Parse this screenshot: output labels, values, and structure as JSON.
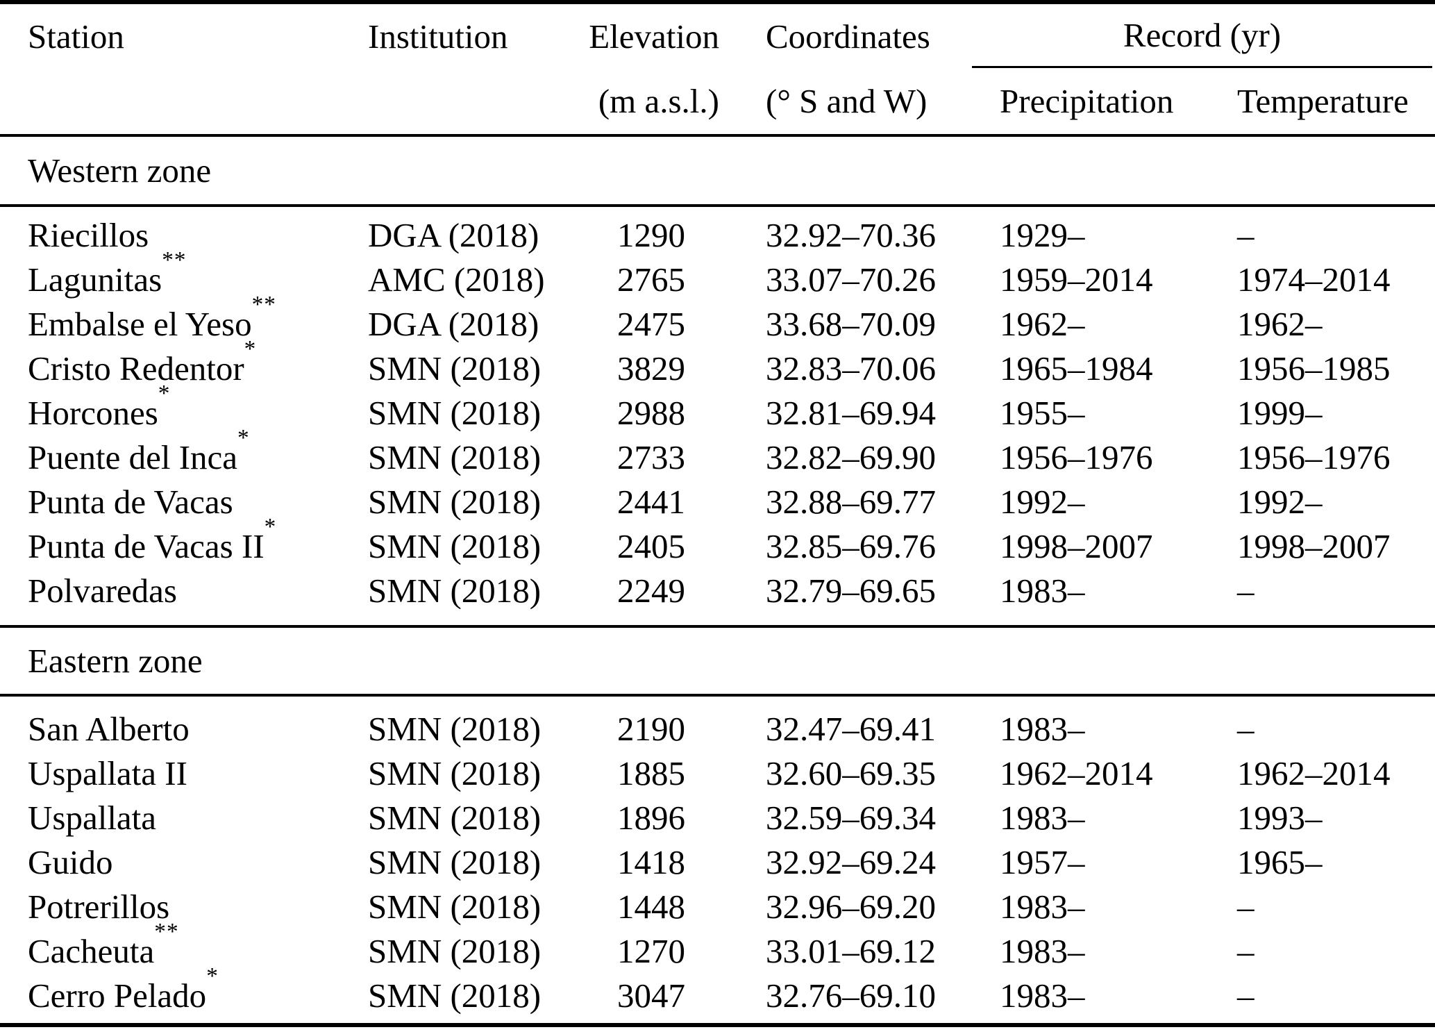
{
  "table": {
    "columns": {
      "station_label": "Station",
      "institution_label": "Institution",
      "elevation_label": "Elevation",
      "elevation_unit": "(m a.s.l.)",
      "coordinates_label": "Coordinates",
      "coordinates_unit": "(° S and W)",
      "record_label": "Record (yr)",
      "precipitation_label": "Precipitation",
      "temperature_label": "Temperature"
    },
    "sections": [
      {
        "title": "Western zone",
        "rows": [
          {
            "station": "Riecillos",
            "marker": "",
            "institution": "DGA (2018)",
            "elevation": "1290",
            "coordinates": "32.92–70.36",
            "precipitation": "1929–",
            "temperature": "–"
          },
          {
            "station": "Lagunitas",
            "marker": "**",
            "institution": "AMC (2018)",
            "elevation": "2765",
            "coordinates": "33.07–70.26",
            "precipitation": "1959–2014",
            "temperature": "1974–2014"
          },
          {
            "station": "Embalse el Yeso",
            "marker": "**",
            "institution": "DGA (2018)",
            "elevation": "2475",
            "coordinates": "33.68–70.09",
            "precipitation": "1962–",
            "temperature": "1962–"
          },
          {
            "station": "Cristo Redentor",
            "marker": "*",
            "institution": "SMN (2018)",
            "elevation": "3829",
            "coordinates": "32.83–70.06",
            "precipitation": "1965–1984",
            "temperature": "1956–1985"
          },
          {
            "station": "Horcones",
            "marker": "*",
            "institution": "SMN (2018)",
            "elevation": "2988",
            "coordinates": "32.81–69.94",
            "precipitation": "1955–",
            "temperature": "1999–"
          },
          {
            "station": "Puente del Inca",
            "marker": "*",
            "institution": "SMN (2018)",
            "elevation": "2733",
            "coordinates": "32.82–69.90",
            "precipitation": "1956–1976",
            "temperature": "1956–1976"
          },
          {
            "station": "Punta de Vacas",
            "marker": "",
            "institution": "SMN (2018)",
            "elevation": "2441",
            "coordinates": "32.88–69.77",
            "precipitation": "1992–",
            "temperature": "1992–"
          },
          {
            "station": "Punta de Vacas II",
            "marker": "*",
            "institution": "SMN (2018)",
            "elevation": "2405",
            "coordinates": "32.85–69.76",
            "precipitation": "1998–2007",
            "temperature": "1998–2007"
          },
          {
            "station": "Polvaredas",
            "marker": "",
            "institution": "SMN (2018)",
            "elevation": "2249",
            "coordinates": "32.79–69.65",
            "precipitation": "1983–",
            "temperature": "–"
          }
        ]
      },
      {
        "title": "Eastern zone",
        "rows": [
          {
            "station": "San Alberto",
            "marker": "",
            "institution": "SMN (2018)",
            "elevation": "2190",
            "coordinates": "32.47–69.41",
            "precipitation": "1983–",
            "temperature": "–"
          },
          {
            "station": "Uspallata II",
            "marker": "",
            "institution": "SMN (2018)",
            "elevation": "1885",
            "coordinates": "32.60–69.35",
            "precipitation": "1962–2014",
            "temperature": "1962–2014"
          },
          {
            "station": "Uspallata",
            "marker": "",
            "institution": "SMN (2018)",
            "elevation": "1896",
            "coordinates": "32.59–69.34",
            "precipitation": "1983–",
            "temperature": "1993–"
          },
          {
            "station": "Guido",
            "marker": "",
            "institution": "SMN (2018)",
            "elevation": "1418",
            "coordinates": "32.92–69.24",
            "precipitation": "1957–",
            "temperature": "1965–"
          },
          {
            "station": "Potrerillos",
            "marker": "",
            "institution": "SMN (2018)",
            "elevation": "1448",
            "coordinates": "32.96–69.20",
            "precipitation": "1983–",
            "temperature": "–"
          },
          {
            "station": "Cacheuta",
            "marker": "**",
            "institution": "SMN (2018)",
            "elevation": "1270",
            "coordinates": "33.01–69.12",
            "precipitation": "1983–",
            "temperature": "–"
          },
          {
            "station": "Cerro Pelado",
            "marker": "*",
            "institution": "SMN (2018)",
            "elevation": "3047",
            "coordinates": "32.76–69.10",
            "precipitation": "1983–",
            "temperature": "–"
          }
        ]
      }
    ]
  },
  "colors": {
    "text": "#000000",
    "background": "#ffffff",
    "rule": "#000000"
  }
}
